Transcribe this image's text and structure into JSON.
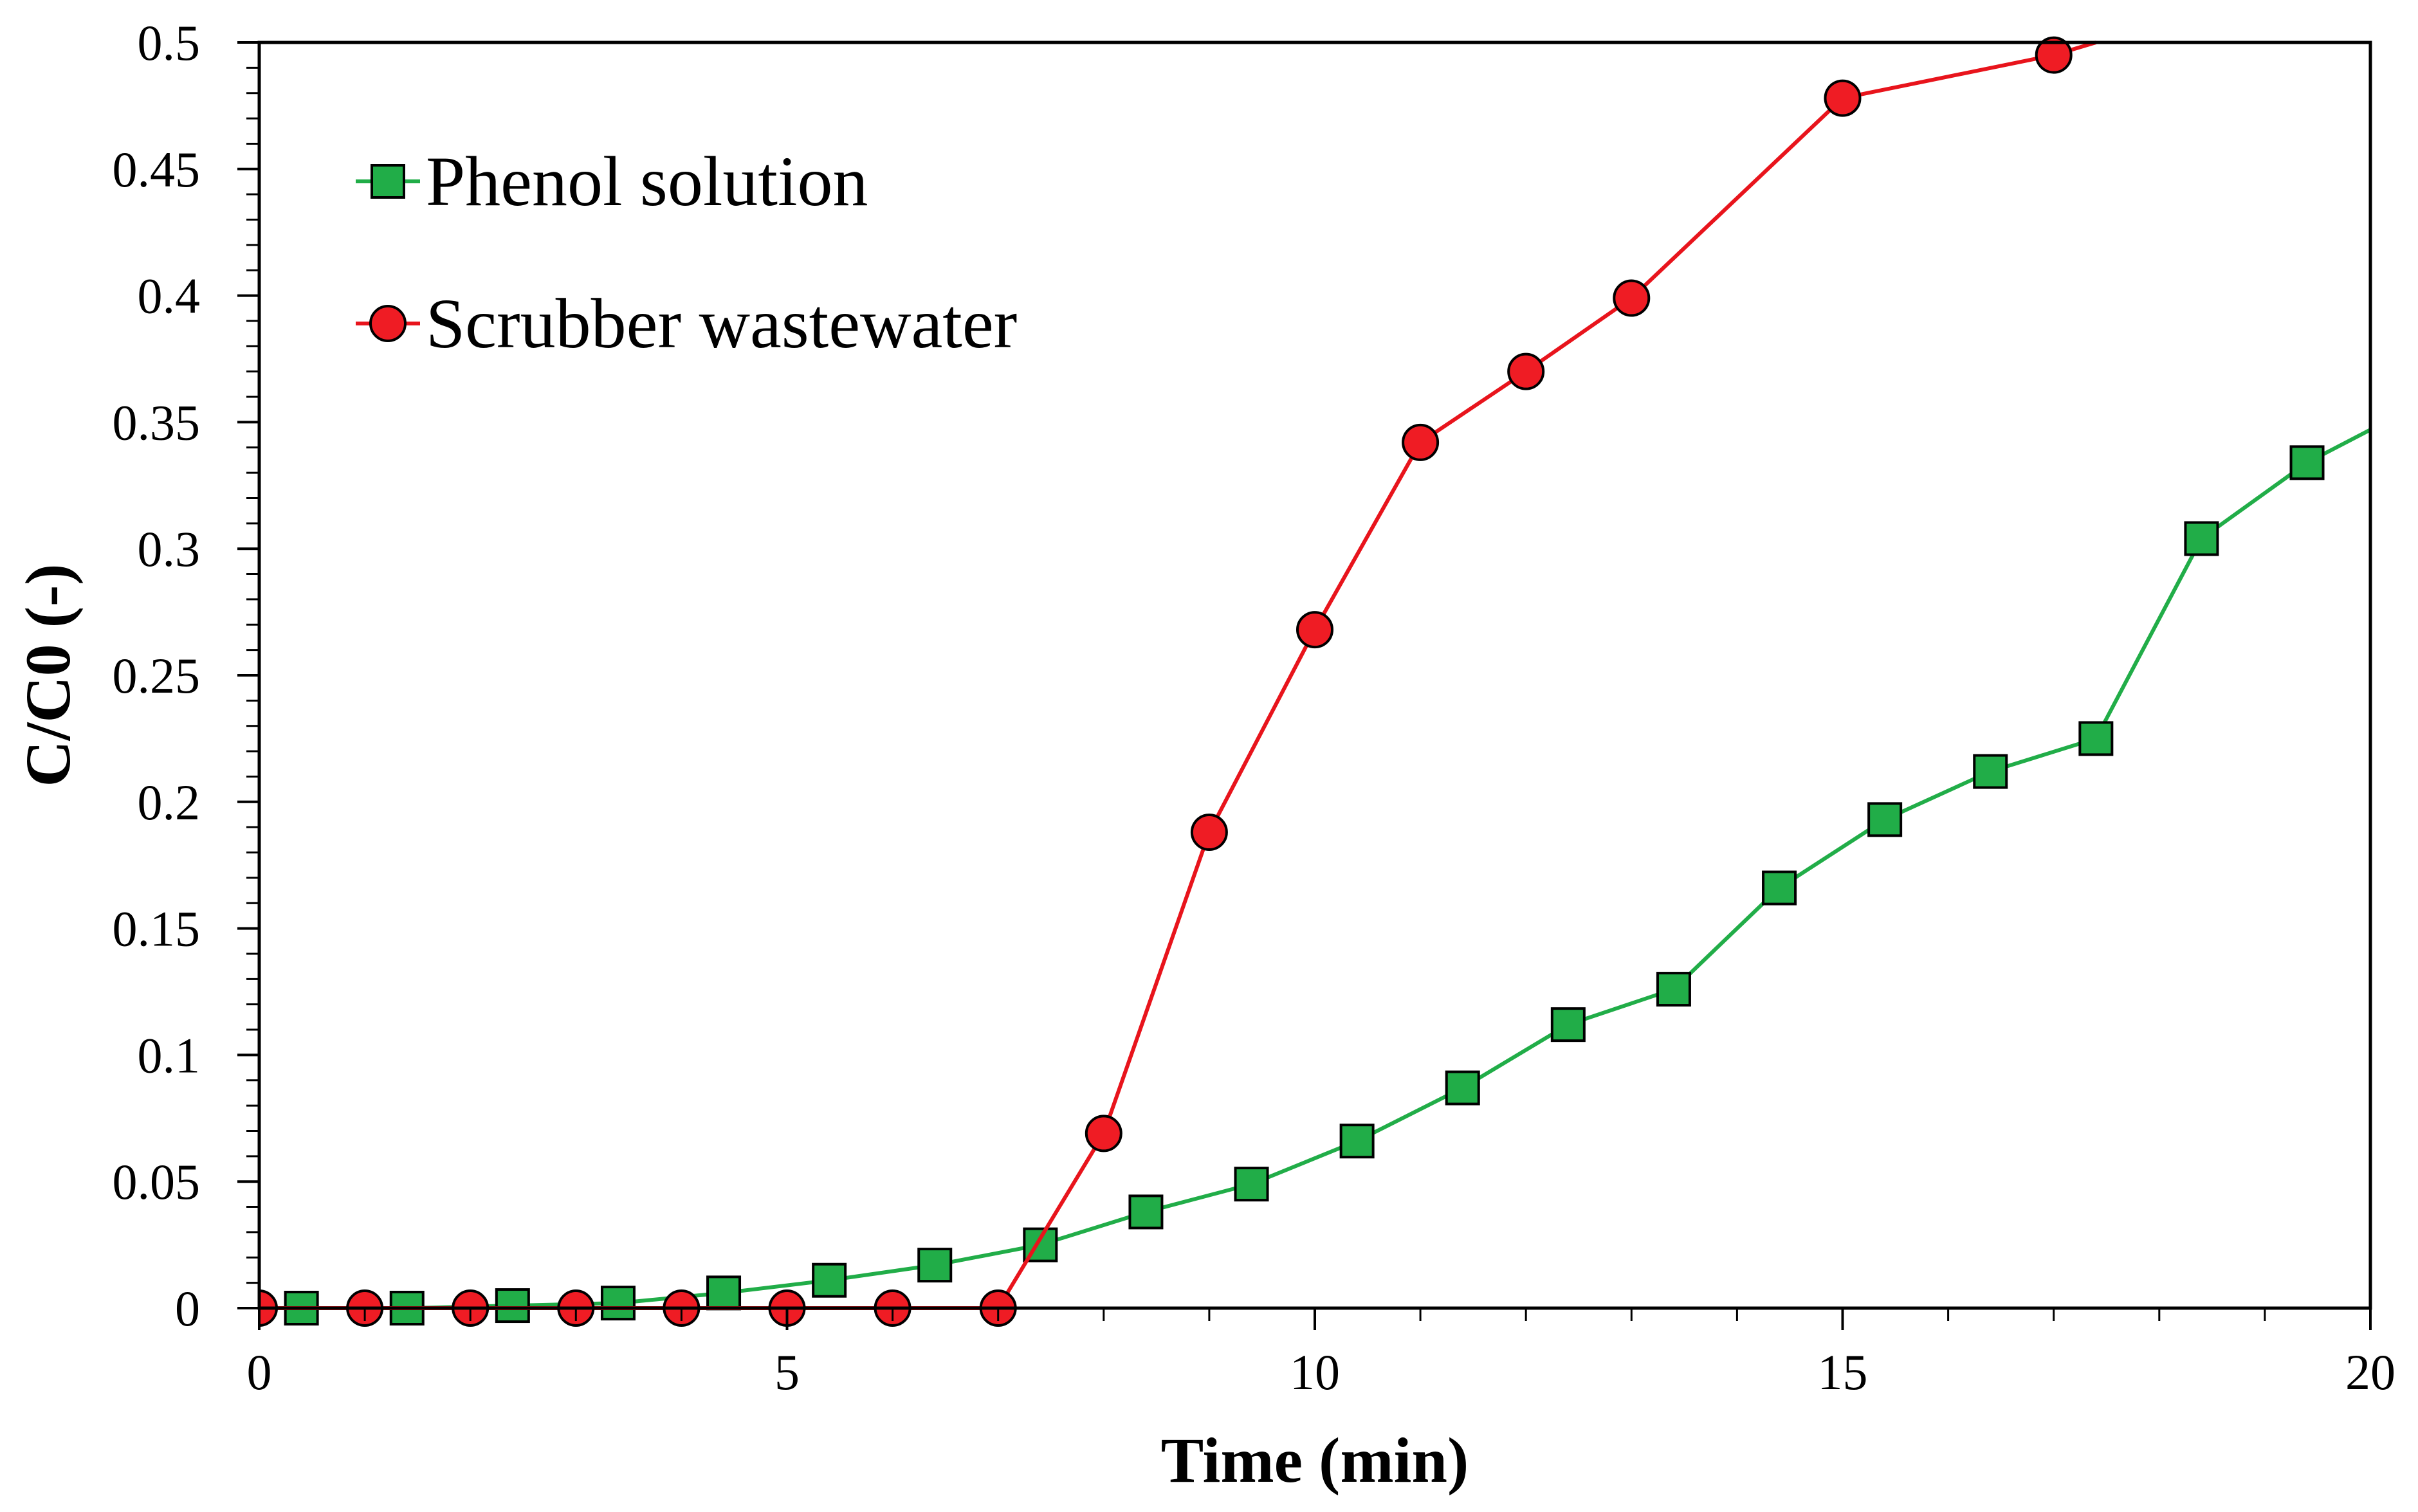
{
  "chart_data": {
    "type": "line",
    "title": "",
    "xlabel": "Time (min)",
    "ylabel": "C/C0 (-)",
    "xlim": [
      0,
      20
    ],
    "ylim": [
      0,
      0.5
    ],
    "xticks": [
      0,
      5,
      10,
      15,
      20
    ],
    "xtick_labels": [
      "0",
      "5",
      "10",
      "15",
      "20"
    ],
    "yticks": [
      0,
      0.05,
      0.1,
      0.15,
      0.2,
      0.25,
      0.3,
      0.35,
      0.4,
      0.45,
      0.5
    ],
    "ytick_labels": [
      "0",
      "0.05",
      "0.1",
      "0.15",
      "0.2",
      "0.25",
      "0.3",
      "0.35",
      "0.4",
      "0.45",
      "0.5"
    ],
    "x_minor_step": 1,
    "y_minor_step": 0.01,
    "grid": false,
    "legend_position": "top-left",
    "series": [
      {
        "name": "Phenol solution",
        "marker": "square",
        "color": "#21ad48",
        "marker_fill": "#21ad48",
        "x": [
          0.4,
          1.4,
          2.4,
          3.4,
          4.4,
          5.4,
          6.4,
          7.4,
          8.4,
          9.4,
          10.4,
          11.4,
          12.4,
          13.4,
          14.4,
          15.4,
          16.4,
          17.4,
          18.4,
          19.4,
          20.0
        ],
        "y": [
          0.0,
          0.0,
          0.001,
          0.002,
          0.006,
          0.011,
          0.017,
          0.025,
          0.038,
          0.049,
          0.066,
          0.087,
          0.112,
          0.126,
          0.166,
          0.193,
          0.212,
          0.225,
          0.304,
          0.334,
          0.347
        ],
        "marker_count": 20
      },
      {
        "name": "Scrubber wastewater",
        "marker": "circle",
        "color": "#e8141c",
        "marker_fill": "#ef1c24",
        "x": [
          0,
          1,
          2,
          3,
          4,
          5,
          6,
          7,
          8,
          9,
          10,
          11,
          12,
          13,
          15,
          17,
          17.4
        ],
        "y": [
          0.0,
          0.0,
          0.0,
          0.0,
          0.0,
          0.0,
          0.0,
          0.0,
          0.069,
          0.188,
          0.268,
          0.342,
          0.37,
          0.399,
          0.478,
          0.495,
          0.5
        ],
        "marker_count": 16
      }
    ]
  }
}
